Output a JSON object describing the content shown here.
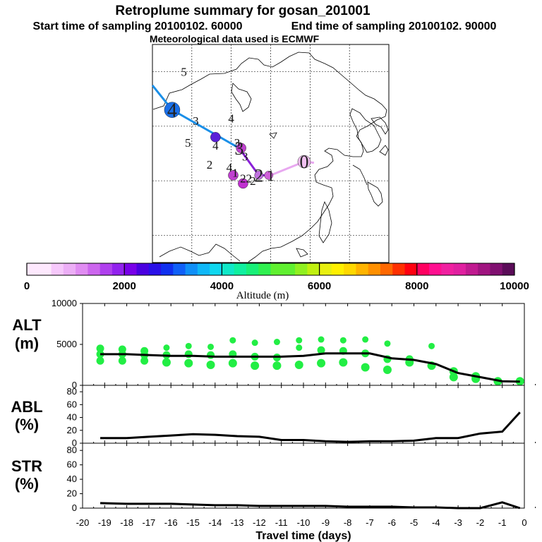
{
  "header": {
    "title": "Retroplume summary for gosan_201001",
    "start_label": "Start time of sampling 20100102. 60000",
    "end_label": "End time of sampling 20100102. 90000",
    "met_label": "Meteorological data used is ECMWF"
  },
  "colors": {
    "scatter": "#22ee44",
    "line": "#000000",
    "track_start": "#e8a8f0",
    "track_mid": "#8a1fd8",
    "track_end": "#1a8fe8"
  },
  "chart_data": [
    {
      "type": "map",
      "title": "Retroplume track",
      "description_labels": {
        "track": [
          {
            "label": "0",
            "lon": 128.5,
            "lat": 33.5
          },
          {
            "label": "1",
            "lon": 120.0,
            "lat": 31.0
          },
          {
            "label": "2",
            "lon": 117.0,
            "lat": 31.0
          },
          {
            "label": "3",
            "lon": 112.0,
            "lat": 36.0
          },
          {
            "label": "4",
            "lon": 95.0,
            "lat": 43.0
          }
        ],
        "cluster_numbers": [
          {
            "label": "5",
            "lon": 98.0,
            "lat": 50.0
          },
          {
            "label": "3",
            "lon": 101.0,
            "lat": 41.0
          },
          {
            "label": "4",
            "lon": 110.0,
            "lat": 41.5
          },
          {
            "label": "5",
            "lon": 99.0,
            "lat": 37.0
          },
          {
            "label": "4",
            "lon": 106.0,
            "lat": 36.5
          },
          {
            "label": "3",
            "lon": 111.5,
            "lat": 37.0
          },
          {
            "label": "3",
            "lon": 113.5,
            "lat": 34.5
          },
          {
            "label": "2",
            "lon": 104.5,
            "lat": 33.0
          },
          {
            "label": "4",
            "lon": 109.5,
            "lat": 32.5
          },
          {
            "label": "1",
            "lon": 111.0,
            "lat": 31.5
          },
          {
            "label": "2",
            "lon": 113.0,
            "lat": 30.5
          },
          {
            "label": "2",
            "lon": 114.5,
            "lat": 30.5
          },
          {
            "label": "2",
            "lon": 115.5,
            "lat": 30.0
          }
        ]
      }
    },
    {
      "type": "colorbar",
      "xlabel": "Altitude (m)",
      "range": [
        0,
        10000
      ],
      "tick_labels": [
        "0",
        "2000",
        "4000",
        "6000",
        "8000",
        "10000"
      ]
    },
    {
      "type": "scatter+line",
      "ylabel": [
        "ALT",
        "(m)"
      ],
      "ylim": [
        0,
        10000
      ],
      "yticks": [
        "0",
        "5000",
        "10000"
      ],
      "xlim": [
        -20,
        0
      ],
      "mean_line": {
        "x": [
          -19.2,
          -18.0,
          -17.0,
          -16.0,
          -15.0,
          -14.0,
          -13.0,
          -12.0,
          -11.0,
          -10.0,
          -9.0,
          -8.0,
          -7.0,
          -6.0,
          -5.0,
          -4.0,
          -3.0,
          -2.0,
          -1.0,
          -0.2
        ],
        "y": [
          3800,
          3800,
          3700,
          3600,
          3600,
          3500,
          3500,
          3500,
          3500,
          3600,
          3900,
          3900,
          3900,
          3300,
          3100,
          2600,
          1500,
          1000,
          500,
          450
        ]
      },
      "scatter_points": [
        {
          "x": -19.2,
          "y": 4500
        },
        {
          "x": -19.2,
          "y": 3800
        },
        {
          "x": -19.2,
          "y": 3000
        },
        {
          "x": -18.2,
          "y": 4400
        },
        {
          "x": -18.2,
          "y": 3800
        },
        {
          "x": -18.2,
          "y": 3000
        },
        {
          "x": -17.2,
          "y": 4200
        },
        {
          "x": -17.2,
          "y": 3700
        },
        {
          "x": -17.2,
          "y": 3000
        },
        {
          "x": -16.2,
          "y": 4600
        },
        {
          "x": -16.2,
          "y": 3700
        },
        {
          "x": -16.2,
          "y": 2800
        },
        {
          "x": -15.2,
          "y": 4800
        },
        {
          "x": -15.2,
          "y": 3800
        },
        {
          "x": -15.2,
          "y": 2700
        },
        {
          "x": -14.2,
          "y": 4700
        },
        {
          "x": -14.2,
          "y": 3700
        },
        {
          "x": -14.2,
          "y": 2500
        },
        {
          "x": -13.2,
          "y": 5500
        },
        {
          "x": -13.2,
          "y": 3800
        },
        {
          "x": -13.2,
          "y": 2700
        },
        {
          "x": -12.2,
          "y": 5200
        },
        {
          "x": -12.2,
          "y": 3500
        },
        {
          "x": -12.2,
          "y": 2400
        },
        {
          "x": -11.2,
          "y": 5300
        },
        {
          "x": -11.2,
          "y": 3400
        },
        {
          "x": -11.2,
          "y": 2400
        },
        {
          "x": -10.2,
          "y": 5500
        },
        {
          "x": -10.2,
          "y": 4600
        },
        {
          "x": -10.2,
          "y": 2500
        },
        {
          "x": -9.2,
          "y": 5600
        },
        {
          "x": -9.2,
          "y": 4300
        },
        {
          "x": -9.2,
          "y": 2700
        },
        {
          "x": -8.2,
          "y": 5500
        },
        {
          "x": -8.2,
          "y": 4200
        },
        {
          "x": -8.2,
          "y": 2800
        },
        {
          "x": -7.2,
          "y": 5600
        },
        {
          "x": -7.2,
          "y": 3900
        },
        {
          "x": -7.2,
          "y": 2200
        },
        {
          "x": -6.2,
          "y": 5100
        },
        {
          "x": -6.2,
          "y": 3200
        },
        {
          "x": -6.2,
          "y": 1900
        },
        {
          "x": -5.2,
          "y": 3200
        },
        {
          "x": -5.2,
          "y": 2800
        },
        {
          "x": -4.2,
          "y": 4800
        },
        {
          "x": -4.2,
          "y": 2400
        },
        {
          "x": -3.2,
          "y": 1700
        },
        {
          "x": -3.2,
          "y": 1000
        },
        {
          "x": -2.2,
          "y": 800
        },
        {
          "x": -2.2,
          "y": 1100
        },
        {
          "x": -1.2,
          "y": 500
        },
        {
          "x": -0.2,
          "y": 500
        }
      ]
    },
    {
      "type": "line",
      "ylabel": [
        "ABL",
        "(%)"
      ],
      "ylim": [
        0,
        90
      ],
      "yticks": [
        "0",
        "20",
        "40",
        "60",
        "80"
      ],
      "xlim": [
        -20,
        0
      ],
      "x": [
        -19.2,
        -18.0,
        -17.0,
        -16.0,
        -15.0,
        -14.0,
        -13.0,
        -12.0,
        -11.0,
        -10.0,
        -9.0,
        -8.0,
        -7.0,
        -6.0,
        -5.0,
        -4.0,
        -3.0,
        -2.0,
        -1.0,
        -0.2
      ],
      "y": [
        8,
        8,
        10,
        12,
        14,
        13,
        11,
        10,
        5,
        5,
        3,
        2,
        3,
        3,
        4,
        8,
        8,
        15,
        18,
        48
      ]
    },
    {
      "type": "line",
      "ylabel": [
        "STR",
        "(%)"
      ],
      "ylim": [
        0,
        90
      ],
      "yticks": [
        "0",
        "20",
        "40",
        "60",
        "80"
      ],
      "xlim": [
        -20,
        0
      ],
      "xlabel": "Travel time (days)",
      "xtick_labels": [
        "-20",
        "-19",
        "-18",
        "-17",
        "-16",
        "-15",
        "-14",
        "-13",
        "-12",
        "-11",
        "-10",
        "-9",
        "-8",
        "-7",
        "-6",
        "-5",
        "-4",
        "-3",
        "-2",
        "-1",
        "0"
      ],
      "x": [
        -19.2,
        -18.0,
        -17.0,
        -16.0,
        -15.0,
        -14.0,
        -13.0,
        -12.0,
        -11.0,
        -10.0,
        -9.0,
        -8.0,
        -7.0,
        -6.0,
        -5.0,
        -4.0,
        -3.0,
        -2.0,
        -1.5,
        -1.0,
        -0.2
      ],
      "y": [
        7,
        6,
        6,
        6,
        5,
        4,
        4,
        3,
        3,
        3,
        3,
        2,
        2,
        2,
        1,
        1,
        0,
        0,
        4,
        8,
        0
      ]
    }
  ]
}
